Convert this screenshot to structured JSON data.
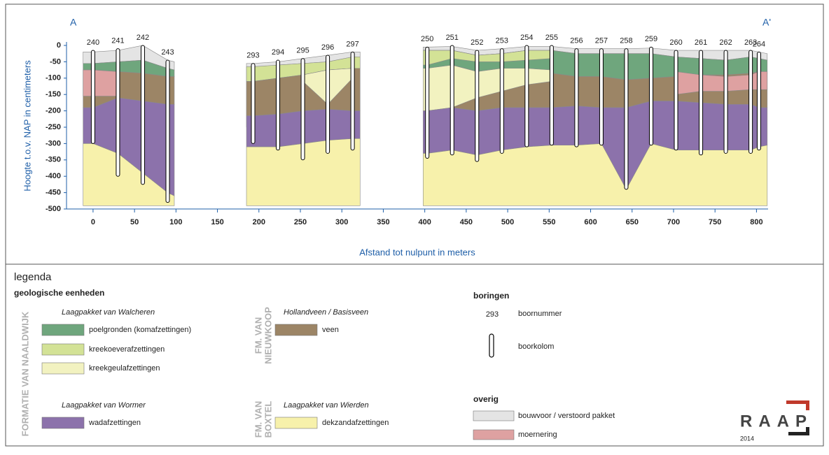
{
  "chart_data": {
    "type": "cross-section",
    "label_left": "A",
    "label_right": "A'",
    "ylabel": "Hoogte t.o.v. NAP in centimeters",
    "xlabel": "Afstand tot nulpunt in meters",
    "xlim": [
      -32,
      814
    ],
    "ylim": [
      -500,
      0
    ],
    "xticks": [
      0,
      50,
      100,
      150,
      200,
      250,
      300,
      350,
      400,
      450,
      500,
      550,
      600,
      650,
      700,
      750,
      800
    ],
    "yticks": [
      0,
      -50,
      -100,
      -150,
      -200,
      -250,
      -300,
      -350,
      -400,
      -450,
      -500
    ],
    "sections": [
      {
        "x": [
          -12,
          0,
          30,
          60,
          90,
          98
        ]
      },
      {
        "x": [
          185,
          193,
          223,
          253,
          283,
          313,
          322
        ]
      },
      {
        "x": [
          398,
          403,
          433,
          463,
          493,
          523,
          553,
          583,
          613,
          643,
          673,
          703,
          733,
          763,
          793,
          803,
          813
        ]
      }
    ],
    "series": [
      {
        "name": "bouwvoor / verstoord pakket",
        "color": "#e4e4e4",
        "sections": [
          {
            "top": [
              -20,
              -20,
              -15,
              0,
              -45,
              -50
            ],
            "bottom": [
              -55,
              -55,
              -50,
              -45,
              -70,
              -75
            ]
          },
          {
            "top": [
              -55,
              -55,
              -50,
              -40,
              -30,
              -20,
              -20
            ],
            "bottom": [
              -250,
              -250,
              -60,
              -55,
              -50,
              -35,
              -35
            ]
          },
          {
            "top": [
              -5,
              -5,
              -3,
              -15,
              -10,
              -3,
              -3,
              -10,
              -10,
              -10,
              -8,
              -15,
              -15,
              -15,
              -15,
              -20,
              -25
            ],
            "bottom": [
              -15,
              -15,
              -15,
              -30,
              -25,
              -15,
              -15,
              -25,
              -25,
              -25,
              -25,
              -35,
              -40,
              -45,
              -35,
              -40,
              -45
            ]
          }
        ]
      },
      {
        "name": "poelgronden (komafzettingen)",
        "color": "#6fa67d",
        "sections": [
          {
            "top": [
              -55,
              -55,
              -50,
              -45,
              -70,
              -75
            ],
            "bottom": [
              -75,
              -75,
              -80,
              -85,
              -95,
              -95
            ]
          },
          null,
          {
            "top": [
              -15,
              -15,
              -15,
              -30,
              -25,
              -15,
              -15,
              -25,
              -25,
              -25,
              -25,
              -35,
              -40,
              -45,
              -35,
              -40,
              -45
            ],
            "bottom": [
              -75,
              -75,
              -60,
              -80,
              -70,
              -80,
              -85,
              -95,
              -95,
              -105,
              -100,
              -95,
              -90,
              -90,
              -85,
              -80,
              -85
            ]
          }
        ]
      },
      {
        "name": "kreekoeverafzettingen",
        "color": "#d3e296",
        "sections": [
          null,
          {
            "top": [
              -65,
              -65,
              -60,
              -55,
              -50,
              -35,
              -35
            ],
            "bottom": [
              -110,
              -110,
              -100,
              -90,
              -75,
              -70,
              -70
            ]
          },
          {
            "top": [
              -15,
              -15,
              -15,
              -30,
              -25,
              -15,
              -15,
              null,
              null,
              null,
              null,
              null,
              null,
              null,
              null,
              null,
              null
            ],
            "bottom": [
              -60,
              -60,
              -40,
              -50,
              -50,
              -45,
              -40,
              null,
              null,
              null,
              null,
              null,
              null,
              null,
              null,
              null,
              null
            ]
          }
        ]
      },
      {
        "name": "veen",
        "color": "#9c8566",
        "sections": [
          {
            "top": [
              -75,
              -75,
              -80,
              -85,
              -95,
              -95
            ],
            "bottom": [
              -190,
              -190,
              -160,
              -170,
              -180,
              -180
            ]
          },
          {
            "top": [
              -110,
              -110,
              -100,
              -90,
              -75,
              -70,
              -70
            ],
            "bottom": [
              -215,
              -215,
              -210,
              -200,
              -195,
              -200,
              -200
            ]
          },
          {
            "top": [
              -75,
              -75,
              -60,
              -80,
              -70,
              -80,
              -85,
              -95,
              -95,
              -105,
              -100,
              -95,
              -90,
              -90,
              -85,
              -80,
              -85
            ],
            "bottom": [
              -200,
              -200,
              -190,
              -200,
              -190,
              -190,
              -190,
              -185,
              -190,
              -190,
              -170,
              -170,
              -175,
              -180,
              -180,
              -190,
              -190
            ]
          }
        ]
      },
      {
        "name": "kreekgeulafzettingen",
        "color": "#f2f2c0",
        "sections": [
          null,
          {
            "top": [
              null,
              null,
              null,
              -90,
              -75,
              -70,
              null
            ],
            "bottom": [
              null,
              null,
              null,
              -110,
              -180,
              -100,
              null
            ]
          },
          {
            "top": [
              -70,
              -70,
              -60,
              -80,
              -70,
              -70,
              -75,
              null,
              null,
              null,
              null,
              null,
              null,
              null,
              null,
              null,
              null
            ],
            "bottom": [
              -200,
              -200,
              -190,
              -160,
              -140,
              -120,
              -110,
              null,
              null,
              null,
              null,
              null,
              null,
              null,
              null,
              null,
              null
            ]
          }
        ]
      },
      {
        "name": "moernering",
        "color": "#dea1a1",
        "sections": [
          {
            "top": [
              -75,
              -75,
              -80,
              null,
              null,
              null
            ],
            "bottom": [
              -155,
              -155,
              -155,
              null,
              null,
              null
            ]
          },
          null,
          {
            "top": [
              null,
              null,
              null,
              null,
              null,
              null,
              null,
              null,
              null,
              null,
              null,
              -80,
              -90,
              -95,
              -90,
              -80,
              -80
            ],
            "bottom": [
              null,
              null,
              null,
              null,
              null,
              null,
              null,
              null,
              null,
              null,
              null,
              -150,
              -140,
              -140,
              -135,
              -135,
              -135
            ]
          }
        ]
      },
      {
        "name": "wadafzettingen",
        "color": "#8c72ab",
        "sections": [
          {
            "top": [
              -190,
              -190,
              -160,
              -170,
              -180,
              -180
            ],
            "bottom": [
              -300,
              -300,
              -330,
              -390,
              -450,
              -460
            ]
          },
          {
            "top": [
              -215,
              -215,
              -210,
              -200,
              -195,
              -200,
              -200
            ],
            "bottom": [
              -310,
              -310,
              -310,
              -300,
              -290,
              -285,
              -285
            ]
          },
          {
            "top": [
              -200,
              -200,
              -190,
              -200,
              -190,
              -190,
              -190,
              -185,
              -190,
              -190,
              -170,
              -170,
              -175,
              -180,
              -180,
              -190,
              -190
            ],
            "bottom": [
              -330,
              -330,
              -320,
              -335,
              -320,
              -310,
              -305,
              -305,
              -300,
              -440,
              -300,
              -320,
              -320,
              -320,
              -320,
              -310,
              -305
            ]
          }
        ]
      },
      {
        "name": "dekzandafzettingen",
        "color": "#f7f1ab",
        "sections": [
          {
            "top": [
              -300,
              -300,
              -330,
              -390,
              -450,
              -460
            ],
            "bottom": [
              -490,
              -490,
              -490,
              -490,
              -490,
              -490
            ]
          },
          {
            "top": [
              -310,
              -310,
              -310,
              -300,
              -290,
              -285,
              -285
            ],
            "bottom": [
              -490,
              -490,
              -490,
              -490,
              -490,
              -490,
              -490
            ]
          },
          {
            "top": [
              -330,
              -330,
              -320,
              -335,
              -320,
              -310,
              -305,
              -305,
              -300,
              -440,
              -300,
              -320,
              -320,
              -320,
              -320,
              -310,
              -305
            ],
            "bottom": [
              -490,
              -490,
              -490,
              -490,
              -490,
              -490,
              -490,
              -490,
              -490,
              -490,
              -490,
              -490,
              -490,
              -490,
              -490,
              -490,
              -490
            ]
          }
        ]
      }
    ],
    "borings": [
      {
        "name": "240",
        "x": 0,
        "top": -15,
        "bottom": -300
      },
      {
        "name": "241",
        "x": 30,
        "top": -10,
        "bottom": -400
      },
      {
        "name": "242",
        "x": 60,
        "top": 0,
        "bottom": -425
      },
      {
        "name": "243",
        "x": 90,
        "top": -45,
        "bottom": -480
      },
      {
        "name": "293",
        "x": 193,
        "top": -55,
        "bottom": -300
      },
      {
        "name": "294",
        "x": 223,
        "top": -45,
        "bottom": -320
      },
      {
        "name": "295",
        "x": 253,
        "top": -40,
        "bottom": -350
      },
      {
        "name": "296",
        "x": 283,
        "top": -30,
        "bottom": -330
      },
      {
        "name": "297",
        "x": 313,
        "top": -20,
        "bottom": -320
      },
      {
        "name": "250",
        "x": 403,
        "top": -5,
        "bottom": -345
      },
      {
        "name": "251",
        "x": 433,
        "top": 0,
        "bottom": -335
      },
      {
        "name": "252",
        "x": 463,
        "top": -15,
        "bottom": -355
      },
      {
        "name": "253",
        "x": 493,
        "top": -10,
        "bottom": -330
      },
      {
        "name": "254",
        "x": 523,
        "top": 0,
        "bottom": -310
      },
      {
        "name": "255",
        "x": 553,
        "top": 0,
        "bottom": -305
      },
      {
        "name": "256",
        "x": 583,
        "top": -10,
        "bottom": -310
      },
      {
        "name": "257",
        "x": 613,
        "top": -10,
        "bottom": -305
      },
      {
        "name": "258",
        "x": 643,
        "top": -10,
        "bottom": -440
      },
      {
        "name": "259",
        "x": 673,
        "top": -5,
        "bottom": -305
      },
      {
        "name": "260",
        "x": 703,
        "top": -15,
        "bottom": -320
      },
      {
        "name": "261",
        "x": 733,
        "top": -15,
        "bottom": -335
      },
      {
        "name": "262",
        "x": 763,
        "top": -15,
        "bottom": -330
      },
      {
        "name": "263",
        "x": 793,
        "top": -15,
        "bottom": -330
      },
      {
        "name": "264",
        "x": 803,
        "top": -20,
        "bottom": -320
      }
    ],
    "legend": {
      "title": "legenda",
      "heading": "geologische eenheden",
      "formation_naaldwijk": "FORMATIE VAN NAALDWIJK",
      "formation_nieuwkoop": [
        "FM. VAN",
        "NIEUWKOOP"
      ],
      "formation_boxtel": [
        "FM. VAN",
        "BOXTEL"
      ],
      "walcheren": "Laagpakket van Walcheren",
      "wormer": "Laagpakket van Wormer",
      "hollandveen": "Hollandveen / Basisveen",
      "wierden": "Laagpakket van Wierden",
      "boringen": "boringen",
      "example_number": "293",
      "boornummer": "boornummer",
      "boorkolom": "boorkolom",
      "overig": "overig"
    },
    "logo": "RAAP",
    "year": "2014"
  }
}
